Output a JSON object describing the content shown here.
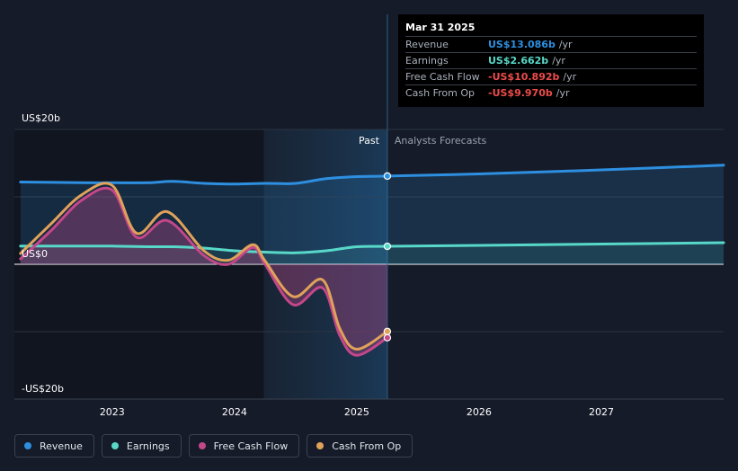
{
  "colors": {
    "background": "#151b28",
    "revenue": "#2e8fe0",
    "earnings": "#58d8c8",
    "free_cash_flow": "#c4478a",
    "cash_from_op": "#e0a25a"
  },
  "tooltip": {
    "date": "Mar 31 2025",
    "rows": [
      {
        "name": "Revenue",
        "value": "US$13.086b",
        "unit": "/yr",
        "color": "#2e8fe0"
      },
      {
        "name": "Earnings",
        "value": "US$2.662b",
        "unit": "/yr",
        "color": "#58d8c8"
      },
      {
        "name": "Free Cash Flow",
        "value": "-US$10.892b",
        "unit": "/yr",
        "color": "#ee4b4b"
      },
      {
        "name": "Cash From Op",
        "value": "-US$9.970b",
        "unit": "/yr",
        "color": "#ee4b4b"
      }
    ]
  },
  "legend": [
    {
      "label": "Revenue",
      "color": "#2e8fe0"
    },
    {
      "label": "Earnings",
      "color": "#58d8c8"
    },
    {
      "label": "Free Cash Flow",
      "color": "#c4478a"
    },
    {
      "label": "Cash From Op",
      "color": "#e0a25a"
    }
  ],
  "chart_data": {
    "type": "line",
    "y_unit": "US$ billions",
    "ylim": [
      -20,
      20
    ],
    "xlim": [
      2022.2,
      2028.0
    ],
    "y_tick_labels": [
      {
        "value": 20,
        "label": "US$20b"
      },
      {
        "value": 0,
        "label": "US$0"
      },
      {
        "value": -20,
        "label": "-US$20b"
      }
    ],
    "x_tick_labels": [
      {
        "value": 2023,
        "label": "2023"
      },
      {
        "value": 2024,
        "label": "2024"
      },
      {
        "value": 2025,
        "label": "2025"
      },
      {
        "value": 2026,
        "label": "2026"
      },
      {
        "value": 2027,
        "label": "2027"
      }
    ],
    "past_label": "Past",
    "forecast_label": "Analysts Forecasts",
    "shaded_past_start": 2024.24,
    "divider_x": 2025.25,
    "series": [
      {
        "name": "Revenue",
        "color": "#2e8fe0",
        "x": [
          2022.25,
          2022.75,
          2023.0,
          2023.3,
          2023.5,
          2023.75,
          2024.0,
          2024.25,
          2024.5,
          2024.75,
          2025.0,
          2025.25,
          2026.0,
          2027.0,
          2028.0
        ],
        "y": [
          12.2,
          12.1,
          12.1,
          12.1,
          12.3,
          12.0,
          11.9,
          12.0,
          12.0,
          12.7,
          13.0,
          13.086,
          13.4,
          14.0,
          14.7
        ]
      },
      {
        "name": "Earnings",
        "color": "#58d8c8",
        "x": [
          2022.25,
          2022.75,
          2023.0,
          2023.3,
          2023.5,
          2023.75,
          2024.0,
          2024.25,
          2024.5,
          2024.75,
          2025.0,
          2025.25,
          2026.0,
          2027.0,
          2028.0
        ],
        "y": [
          2.7,
          2.7,
          2.7,
          2.6,
          2.6,
          2.4,
          2.0,
          1.8,
          1.7,
          2.0,
          2.6,
          2.662,
          2.8,
          3.0,
          3.2
        ]
      },
      {
        "name": "Free Cash Flow",
        "color": "#c4478a",
        "x": [
          2022.25,
          2022.5,
          2022.75,
          2023.0,
          2023.2,
          2023.45,
          2023.75,
          2023.95,
          2024.15,
          2024.25,
          2024.48,
          2024.72,
          2024.86,
          2025.0,
          2025.25
        ],
        "y": [
          0.8,
          5.0,
          9.5,
          11.0,
          4.0,
          6.5,
          1.3,
          0.0,
          2.5,
          0.0,
          -6.0,
          -3.5,
          -10.5,
          -13.5,
          -10.892
        ]
      },
      {
        "name": "Cash From Op",
        "color": "#e0a25a",
        "x": [
          2022.25,
          2022.5,
          2022.75,
          2023.0,
          2023.2,
          2023.45,
          2023.75,
          2023.95,
          2024.15,
          2024.25,
          2024.48,
          2024.72,
          2024.86,
          2025.0,
          2025.25
        ],
        "y": [
          1.6,
          6.0,
          10.3,
          11.7,
          4.6,
          7.8,
          2.0,
          0.6,
          2.9,
          0.5,
          -4.8,
          -2.3,
          -9.5,
          -12.6,
          -9.97
        ]
      }
    ]
  }
}
